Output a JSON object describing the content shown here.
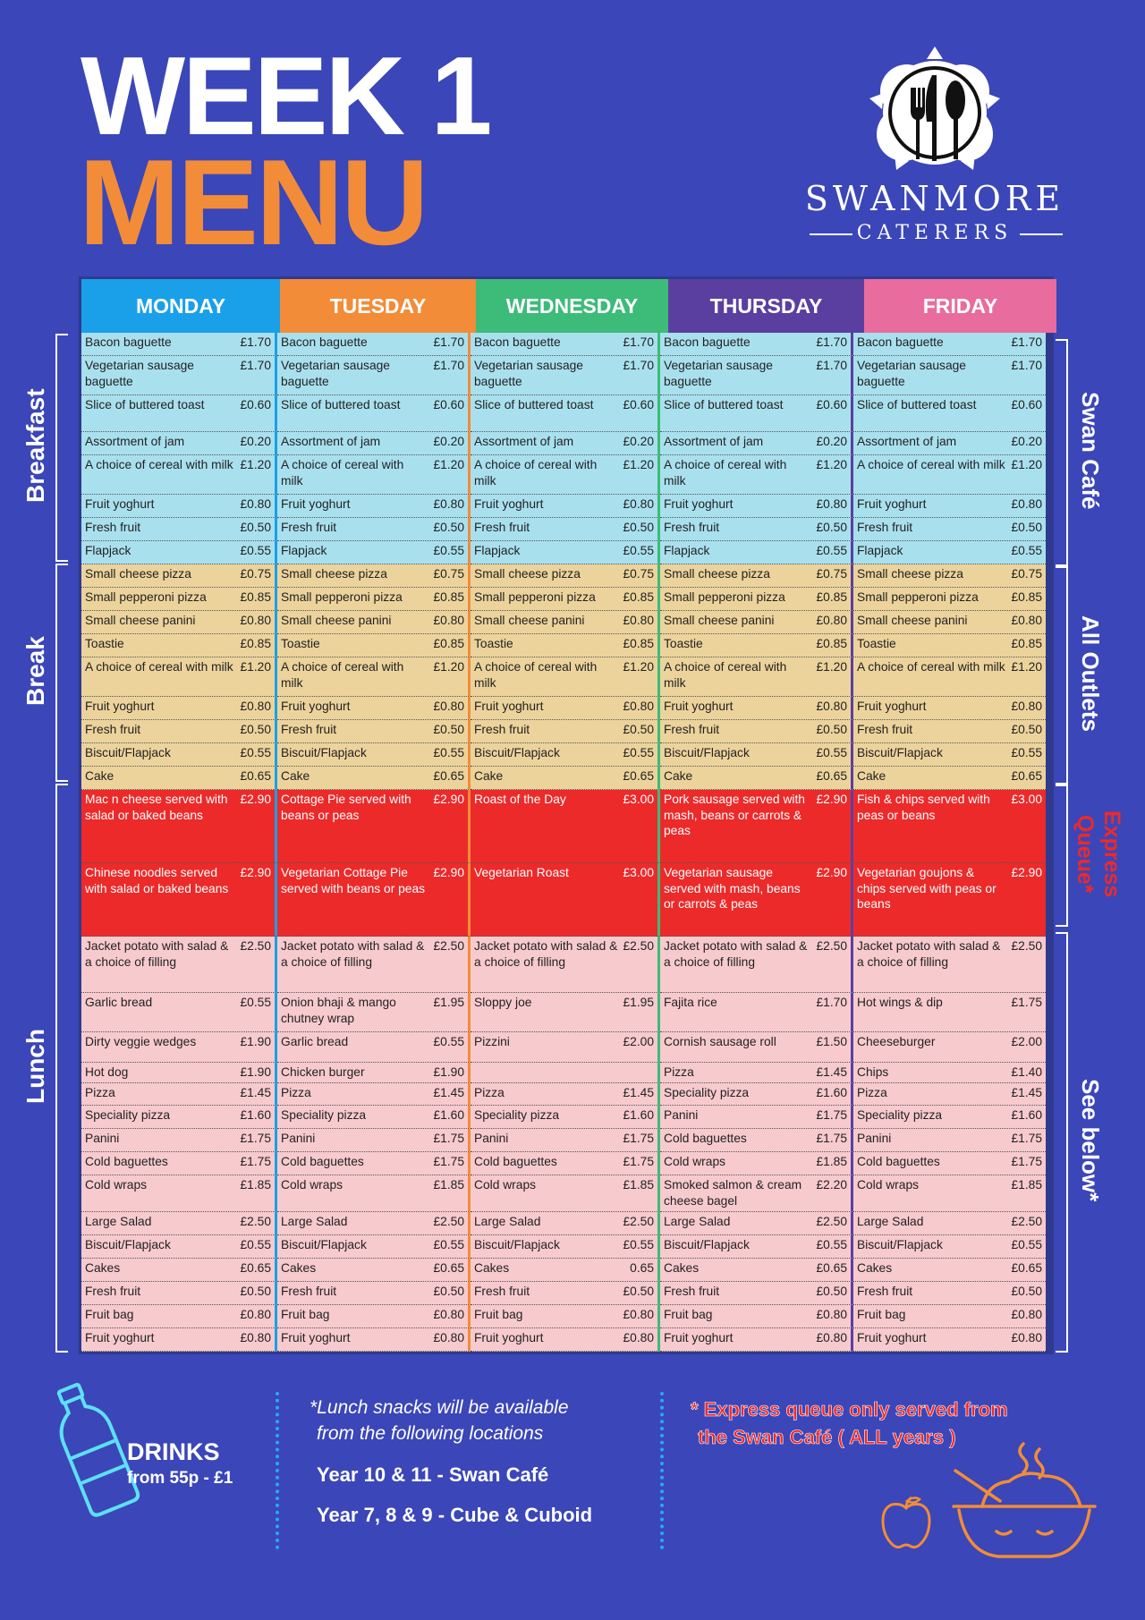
{
  "title": {
    "line1": "WEEK 1",
    "line2": "MENU"
  },
  "brand": {
    "name": "SWANMORE",
    "sub": "CATERERS"
  },
  "days": [
    {
      "label": "MONDAY",
      "color": "#1aa0e8"
    },
    {
      "label": "TUESDAY",
      "color": "#f28c38"
    },
    {
      "label": "WEDNESDAY",
      "color": "#3dbb78"
    },
    {
      "label": "THURSDAY",
      "color": "#5b3fa0"
    },
    {
      "label": "FRIDAY",
      "color": "#e96c9e"
    }
  ],
  "sections_left": {
    "breakfast": "Breakfast",
    "break": "Break",
    "lunch": "Lunch"
  },
  "sections_right": {
    "swan_cafe": "Swan Café",
    "all_outlets": "All Outlets",
    "express_queue": "Express Queue*",
    "see_below": "See below*"
  },
  "breakfast": [
    [
      [
        "Bacon baguette",
        "£1.70"
      ],
      [
        "Bacon baguette",
        "£1.70"
      ],
      [
        "Bacon baguette",
        "£1.70"
      ],
      [
        "Bacon baguette",
        "£1.70"
      ],
      [
        "Bacon baguette",
        "£1.70"
      ]
    ],
    [
      [
        "Vegetarian sausage baguette",
        "£1.70"
      ],
      [
        "Vegetarian sausage baguette",
        "£1.70"
      ],
      [
        "Vegetarian sausage baguette",
        "£1.70"
      ],
      [
        "Vegetarian sausage baguette",
        "£1.70"
      ],
      [
        "Vegetarian sausage baguette",
        "£1.70"
      ]
    ],
    [
      [
        "Slice of buttered toast",
        "£0.60"
      ],
      [
        "Slice of buttered toast",
        "£0.60"
      ],
      [
        "Slice of buttered toast",
        "£0.60"
      ],
      [
        "Slice of buttered toast",
        "£0.60"
      ],
      [
        "Slice of buttered toast",
        "£0.60"
      ]
    ],
    [
      [
        "Assortment of jam",
        "£0.20"
      ],
      [
        "Assortment of jam",
        "£0.20"
      ],
      [
        "Assortment of jam",
        "£0.20"
      ],
      [
        "Assortment of jam",
        "£0.20"
      ],
      [
        "Assortment of jam",
        "£0.20"
      ]
    ],
    [
      [
        "A choice of cereal with milk",
        "£1.20"
      ],
      [
        "A choice of cereal with milk",
        "£1.20"
      ],
      [
        "A choice of cereal with milk",
        "£1.20"
      ],
      [
        "A choice of cereal with milk",
        "£1.20"
      ],
      [
        "A choice of cereal with milk",
        "£1.20"
      ]
    ],
    [
      [
        "Fruit yoghurt",
        "£0.80"
      ],
      [
        "Fruit yoghurt",
        "£0.80"
      ],
      [
        "Fruit yoghurt",
        "£0.80"
      ],
      [
        "Fruit yoghurt",
        "£0.80"
      ],
      [
        "Fruit yoghurt",
        "£0.80"
      ]
    ],
    [
      [
        "Fresh fruit",
        "£0.50"
      ],
      [
        "Fresh fruit",
        "£0.50"
      ],
      [
        "Fresh fruit",
        "£0.50"
      ],
      [
        "Fresh fruit",
        "£0.50"
      ],
      [
        "Fresh fruit",
        "£0.50"
      ]
    ],
    [
      [
        "Flapjack",
        "£0.55"
      ],
      [
        "Flapjack",
        "£0.55"
      ],
      [
        "Flapjack",
        "£0.55"
      ],
      [
        "Flapjack",
        "£0.55"
      ],
      [
        "Flapjack",
        "£0.55"
      ]
    ]
  ],
  "break": [
    [
      [
        "Small cheese pizza",
        "£0.75"
      ],
      [
        "Small cheese pizza",
        "£0.75"
      ],
      [
        "Small cheese pizza",
        "£0.75"
      ],
      [
        "Small cheese pizza",
        "£0.75"
      ],
      [
        "Small cheese pizza",
        "£0.75"
      ]
    ],
    [
      [
        "Small pepperoni pizza",
        "£0.85"
      ],
      [
        "Small pepperoni pizza",
        "£0.85"
      ],
      [
        "Small pepperoni pizza",
        "£0.85"
      ],
      [
        "Small pepperoni pizza",
        "£0.85"
      ],
      [
        "Small pepperoni pizza",
        "£0.85"
      ]
    ],
    [
      [
        "Small cheese panini",
        "£0.80"
      ],
      [
        "Small cheese panini",
        "£0.80"
      ],
      [
        "Small cheese panini",
        "£0.80"
      ],
      [
        "Small cheese panini",
        "£0.80"
      ],
      [
        "Small cheese panini",
        "£0.80"
      ]
    ],
    [
      [
        "Toastie",
        "£0.85"
      ],
      [
        "Toastie",
        "£0.85"
      ],
      [
        "Toastie",
        "£0.85"
      ],
      [
        "Toastie",
        "£0.85"
      ],
      [
        "Toastie",
        "£0.85"
      ]
    ],
    [
      [
        "A choice of cereal with milk",
        "£1.20"
      ],
      [
        "A choice of cereal with milk",
        "£1.20"
      ],
      [
        "A choice of cereal with milk",
        "£1.20"
      ],
      [
        "A choice of cereal with milk",
        "£1.20"
      ],
      [
        "A choice of cereal with milk",
        "£1.20"
      ]
    ],
    [
      [
        "Fruit yoghurt",
        "£0.80"
      ],
      [
        "Fruit yoghurt",
        "£0.80"
      ],
      [
        "Fruit yoghurt",
        "£0.80"
      ],
      [
        "Fruit yoghurt",
        "£0.80"
      ],
      [
        "Fruit yoghurt",
        "£0.80"
      ]
    ],
    [
      [
        "Fresh fruit",
        "£0.50"
      ],
      [
        "Fresh fruit",
        "£0.50"
      ],
      [
        "Fresh fruit",
        "£0.50"
      ],
      [
        "Fresh fruit",
        "£0.50"
      ],
      [
        "Fresh fruit",
        "£0.50"
      ]
    ],
    [
      [
        "Biscuit/Flapjack",
        "£0.55"
      ],
      [
        "Biscuit/Flapjack",
        "£0.55"
      ],
      [
        "Biscuit/Flapjack",
        "£0.55"
      ],
      [
        "Biscuit/Flapjack",
        "£0.55"
      ],
      [
        "Biscuit/Flapjack",
        "£0.55"
      ]
    ],
    [
      [
        "Cake",
        "£0.65"
      ],
      [
        "Cake",
        "£0.65"
      ],
      [
        "Cake",
        "£0.65"
      ],
      [
        "Cake",
        "£0.65"
      ],
      [
        "Cake",
        "£0.65"
      ]
    ]
  ],
  "express": [
    [
      [
        "Mac n cheese served with salad or baked beans",
        "£2.90"
      ],
      [
        "Cottage Pie served with beans or peas",
        "£2.90"
      ],
      [
        "Roast of the Day",
        "£3.00"
      ],
      [
        "Pork sausage served with mash, beans or carrots & peas",
        "£2.90"
      ],
      [
        "Fish & chips served with peas or beans",
        "£3.00"
      ]
    ],
    [
      [
        "Chinese noodles served with salad or baked beans",
        "£2.90"
      ],
      [
        "Vegetarian Cottage Pie served with beans or peas",
        "£2.90"
      ],
      [
        "Vegetarian Roast",
        "£3.00"
      ],
      [
        "Vegetarian sausage served with mash, beans or carrots & peas",
        "£2.90"
      ],
      [
        "Vegetarian goujons & chips served with peas or beans",
        "£2.90"
      ]
    ]
  ],
  "lunch": [
    [
      [
        "Jacket potato with salad & a choice of filling",
        "£2.50"
      ],
      [
        "Jacket potato with salad & a choice of filling",
        "£2.50"
      ],
      [
        "Jacket potato with salad & a choice of filling",
        "£2.50"
      ],
      [
        "Jacket potato with salad & a choice of filling",
        "£2.50"
      ],
      [
        "Jacket potato with salad & a choice of filling",
        "£2.50"
      ]
    ],
    [
      [
        "Garlic bread",
        "£0.55"
      ],
      [
        "Onion bhaji & mango chutney wrap",
        "£1.95"
      ],
      [
        "Sloppy joe",
        "£1.95"
      ],
      [
        "Fajita rice",
        "£1.70"
      ],
      [
        "Hot wings & dip",
        "£1.75"
      ]
    ],
    [
      [
        "Dirty veggie wedges",
        "£1.90"
      ],
      [
        "Garlic bread",
        "£0.55"
      ],
      [
        "Pizzini",
        "£2.00"
      ],
      [
        "Cornish sausage roll",
        "£1.50"
      ],
      [
        "Cheeseburger",
        "£2.00"
      ]
    ],
    [
      [
        "Hot dog",
        "£1.90"
      ],
      [
        "Chicken burger",
        "£1.90"
      ],
      [
        "",
        ""
      ],
      [
        "Pizza",
        "£1.45"
      ],
      [
        "Chips",
        "£1.40"
      ]
    ],
    [
      [
        "Pizza",
        "£1.45"
      ],
      [
        "Pizza",
        "£1.45"
      ],
      [
        "Pizza",
        "£1.45"
      ],
      [
        "Speciality pizza",
        "£1.60"
      ],
      [
        "Pizza",
        "£1.45"
      ]
    ],
    [
      [
        "Speciality pizza",
        "£1.60"
      ],
      [
        "Speciality pizza",
        "£1.60"
      ],
      [
        "Speciality pizza",
        "£1.60"
      ],
      [
        "Panini",
        "£1.75"
      ],
      [
        "Speciality pizza",
        "£1.60"
      ]
    ],
    [
      [
        "Panini",
        "£1.75"
      ],
      [
        "Panini",
        "£1.75"
      ],
      [
        "Panini",
        "£1.75"
      ],
      [
        "Cold baguettes",
        "£1.75"
      ],
      [
        "Panini",
        "£1.75"
      ]
    ],
    [
      [
        "Cold baguettes",
        "£1.75"
      ],
      [
        "Cold baguettes",
        "£1.75"
      ],
      [
        "Cold baguettes",
        "£1.75"
      ],
      [
        "Cold wraps",
        "£1.85"
      ],
      [
        "Cold baguettes",
        "£1.75"
      ]
    ],
    [
      [
        "Cold wraps",
        "£1.85"
      ],
      [
        "Cold wraps",
        "£1.85"
      ],
      [
        "Cold wraps",
        "£1.85"
      ],
      [
        "Smoked salmon & cream cheese bagel",
        "£2.20"
      ],
      [
        "Cold wraps",
        "£1.85"
      ]
    ],
    [
      [
        "Large Salad",
        "£2.50"
      ],
      [
        "Large Salad",
        "£2.50"
      ],
      [
        "Large Salad",
        "£2.50"
      ],
      [
        "Large Salad",
        "£2.50"
      ],
      [
        "Large Salad",
        "£2.50"
      ]
    ],
    [
      [
        "Biscuit/Flapjack",
        "£0.55"
      ],
      [
        "Biscuit/Flapjack",
        "£0.55"
      ],
      [
        "Biscuit/Flapjack",
        "£0.55"
      ],
      [
        "Biscuit/Flapjack",
        "£0.55"
      ],
      [
        "Biscuit/Flapjack",
        "£0.55"
      ]
    ],
    [
      [
        "Cakes",
        "£0.65"
      ],
      [
        "Cakes",
        "£0.65"
      ],
      [
        "Cakes",
        "0.65"
      ],
      [
        "Cakes",
        "£0.65"
      ],
      [
        "Cakes",
        "£0.65"
      ]
    ],
    [
      [
        "Fresh fruit",
        "£0.50"
      ],
      [
        "Fresh fruit",
        "£0.50"
      ],
      [
        "Fresh fruit",
        "£0.50"
      ],
      [
        "Fresh fruit",
        "£0.50"
      ],
      [
        "Fresh fruit",
        "£0.50"
      ]
    ],
    [
      [
        "Fruit bag",
        "£0.80"
      ],
      [
        "Fruit bag",
        "£0.80"
      ],
      [
        "Fruit bag",
        "£0.80"
      ],
      [
        "Fruit bag",
        "£0.80"
      ],
      [
        "Fruit bag",
        "£0.80"
      ]
    ],
    [
      [
        "Fruit yoghurt",
        "£0.80"
      ],
      [
        "Fruit yoghurt",
        "£0.80"
      ],
      [
        "Fruit yoghurt",
        "£0.80"
      ],
      [
        "Fruit yoghurt",
        "£0.80"
      ],
      [
        "Fruit yoghurt",
        "£0.80"
      ]
    ]
  ],
  "footer": {
    "drinks_title": "DRINKS",
    "drinks_price": "from 55p - £1",
    "snacks_note_1": "*Lunch snacks will be available",
    "snacks_note_2": "from the following locations",
    "loc_1": "Year 10 & 11 - Swan Café",
    "loc_2": "Year 7, 8 & 9 - Cube & Cuboid",
    "express_note_1": "* Express queue only served from",
    "express_note_2": "the Swan Café ( ALL years )"
  },
  "icons": [
    "cutlery-logo-icon",
    "water-bottle-icon",
    "apple-icon",
    "food-bowl-icon"
  ]
}
